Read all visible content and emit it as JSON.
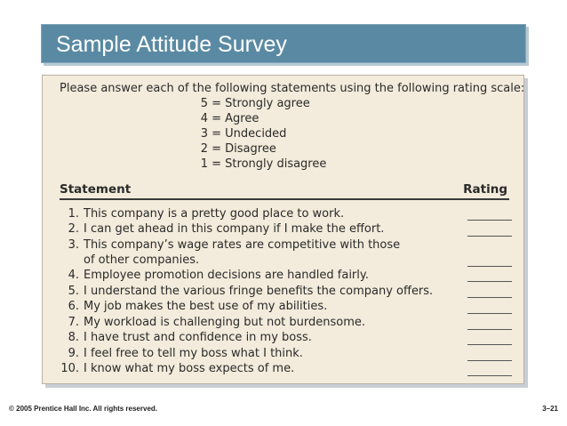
{
  "title": "Sample Attitude Survey",
  "intro": "Please answer each of the following statements using the following rating scale:",
  "scale": [
    {
      "num": "5",
      "label": "= Strongly agree"
    },
    {
      "num": "4",
      "label": "= Agree"
    },
    {
      "num": "3",
      "label": "= Undecided"
    },
    {
      "num": "2",
      "label": "= Disagree"
    },
    {
      "num": "1",
      "label": "= Strongly disagree"
    }
  ],
  "header": {
    "statement": "Statement",
    "rating": "Rating"
  },
  "statements": [
    {
      "num": "1.",
      "text": "This company is a pretty good place to work."
    },
    {
      "num": "2.",
      "text": "I can get ahead in this company if I make the effort."
    },
    {
      "num": "3.",
      "text": "This company’s wage rates are competitive with those",
      "cont": "of other companies."
    },
    {
      "num": "4.",
      "text": "Employee promotion decisions are handled fairly."
    },
    {
      "num": "5.",
      "text": "I understand the various fringe benefits the company offers."
    },
    {
      "num": "6.",
      "text": "My job makes the best use of my abilities."
    },
    {
      "num": "7.",
      "text": "My workload is challenging but not burdensome."
    },
    {
      "num": "8.",
      "text": "I have trust and confidence in my boss."
    },
    {
      "num": "9.",
      "text": "I feel free to tell my boss what I think."
    },
    {
      "num": "10.",
      "text": "I know what my boss expects of me."
    }
  ],
  "footer": {
    "copyright": "© 2005 Prentice Hall Inc. All rights reserved.",
    "page": "3–21"
  }
}
